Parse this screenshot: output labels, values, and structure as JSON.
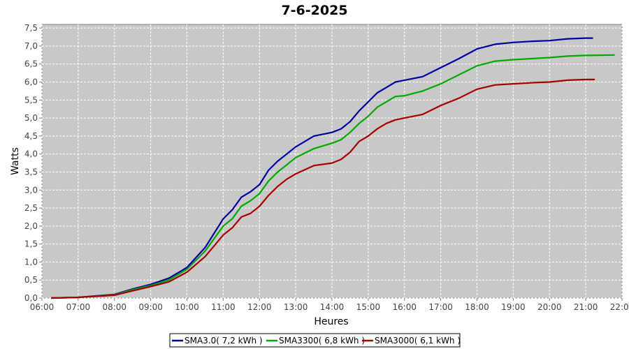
{
  "chart_data": {
    "type": "line",
    "title": "7-6-2025",
    "xlabel": "Heures",
    "ylabel": "Watts",
    "x_ticks": [
      "06:00",
      "07:00",
      "08:00",
      "09:00",
      "10:00",
      "11:00",
      "12:00",
      "13:00",
      "14:00",
      "15:00",
      "16:00",
      "17:00",
      "18:00",
      "19:00",
      "20:00",
      "21:00",
      "22:00"
    ],
    "y_ticks": [
      "0,0",
      "0,5",
      "1,0",
      "1,5",
      "2,0",
      "2,5",
      "3,0",
      "3,5",
      "4,0",
      "4,5",
      "5,0",
      "5,5",
      "6,0",
      "6,5",
      "7,0",
      "7,5"
    ],
    "xlim": [
      6.0,
      22.0
    ],
    "ylim": [
      0.0,
      7.6
    ],
    "grid": true,
    "legend_position": "bottom",
    "series": [
      {
        "name": "SMA3.0( 7,2 kWh )",
        "color": "#0000aa",
        "points": [
          [
            6.25,
            0.0
          ],
          [
            7.0,
            0.02
          ],
          [
            8.0,
            0.1
          ],
          [
            8.5,
            0.25
          ],
          [
            9.0,
            0.38
          ],
          [
            9.5,
            0.55
          ],
          [
            10.0,
            0.85
          ],
          [
            10.5,
            1.4
          ],
          [
            11.0,
            2.2
          ],
          [
            11.25,
            2.45
          ],
          [
            11.5,
            2.8
          ],
          [
            11.75,
            2.95
          ],
          [
            12.0,
            3.15
          ],
          [
            12.25,
            3.55
          ],
          [
            12.5,
            3.8
          ],
          [
            12.75,
            4.0
          ],
          [
            13.0,
            4.2
          ],
          [
            13.5,
            4.5
          ],
          [
            14.0,
            4.6
          ],
          [
            14.25,
            4.7
          ],
          [
            14.5,
            4.9
          ],
          [
            14.75,
            5.2
          ],
          [
            15.0,
            5.45
          ],
          [
            15.25,
            5.7
          ],
          [
            15.5,
            5.85
          ],
          [
            15.75,
            6.0
          ],
          [
            16.0,
            6.05
          ],
          [
            16.5,
            6.15
          ],
          [
            17.0,
            6.4
          ],
          [
            17.5,
            6.65
          ],
          [
            18.0,
            6.92
          ],
          [
            18.5,
            7.05
          ],
          [
            19.0,
            7.1
          ],
          [
            19.5,
            7.13
          ],
          [
            20.0,
            7.15
          ],
          [
            20.5,
            7.2
          ],
          [
            21.0,
            7.22
          ],
          [
            21.2,
            7.22
          ]
        ]
      },
      {
        "name": "SMA3300( 6,8 kWh )",
        "color": "#00aa00",
        "points": [
          [
            6.25,
            0.0
          ],
          [
            7.0,
            0.02
          ],
          [
            8.0,
            0.09
          ],
          [
            8.5,
            0.23
          ],
          [
            9.0,
            0.35
          ],
          [
            9.5,
            0.5
          ],
          [
            10.0,
            0.8
          ],
          [
            10.5,
            1.3
          ],
          [
            11.0,
            2.0
          ],
          [
            11.25,
            2.2
          ],
          [
            11.5,
            2.55
          ],
          [
            11.75,
            2.7
          ],
          [
            12.0,
            2.9
          ],
          [
            12.25,
            3.25
          ],
          [
            12.5,
            3.5
          ],
          [
            12.75,
            3.7
          ],
          [
            13.0,
            3.9
          ],
          [
            13.5,
            4.15
          ],
          [
            14.0,
            4.3
          ],
          [
            14.25,
            4.4
          ],
          [
            14.5,
            4.6
          ],
          [
            14.75,
            4.85
          ],
          [
            15.0,
            5.05
          ],
          [
            15.25,
            5.3
          ],
          [
            15.5,
            5.45
          ],
          [
            15.75,
            5.6
          ],
          [
            16.0,
            5.62
          ],
          [
            16.5,
            5.75
          ],
          [
            17.0,
            5.95
          ],
          [
            17.5,
            6.2
          ],
          [
            18.0,
            6.45
          ],
          [
            18.5,
            6.58
          ],
          [
            19.0,
            6.62
          ],
          [
            19.5,
            6.65
          ],
          [
            20.0,
            6.68
          ],
          [
            20.5,
            6.72
          ],
          [
            21.0,
            6.74
          ],
          [
            21.8,
            6.75
          ]
        ]
      },
      {
        "name": "SMA3000( 6,1 kWh )",
        "color": "#aa0000",
        "points": [
          [
            6.25,
            0.0
          ],
          [
            7.0,
            0.02
          ],
          [
            8.0,
            0.08
          ],
          [
            8.5,
            0.2
          ],
          [
            9.0,
            0.32
          ],
          [
            9.5,
            0.45
          ],
          [
            10.0,
            0.72
          ],
          [
            10.5,
            1.15
          ],
          [
            11.0,
            1.75
          ],
          [
            11.25,
            1.95
          ],
          [
            11.5,
            2.25
          ],
          [
            11.75,
            2.35
          ],
          [
            12.0,
            2.55
          ],
          [
            12.25,
            2.85
          ],
          [
            12.5,
            3.1
          ],
          [
            12.75,
            3.3
          ],
          [
            13.0,
            3.45
          ],
          [
            13.5,
            3.68
          ],
          [
            14.0,
            3.75
          ],
          [
            14.25,
            3.85
          ],
          [
            14.5,
            4.05
          ],
          [
            14.75,
            4.35
          ],
          [
            15.0,
            4.5
          ],
          [
            15.25,
            4.7
          ],
          [
            15.5,
            4.85
          ],
          [
            15.75,
            4.95
          ],
          [
            16.0,
            5.0
          ],
          [
            16.5,
            5.1
          ],
          [
            17.0,
            5.35
          ],
          [
            17.5,
            5.55
          ],
          [
            18.0,
            5.8
          ],
          [
            18.5,
            5.92
          ],
          [
            19.0,
            5.95
          ],
          [
            19.5,
            5.98
          ],
          [
            20.0,
            6.0
          ],
          [
            20.5,
            6.05
          ],
          [
            21.0,
            6.07
          ],
          [
            21.25,
            6.07
          ]
        ]
      }
    ]
  }
}
